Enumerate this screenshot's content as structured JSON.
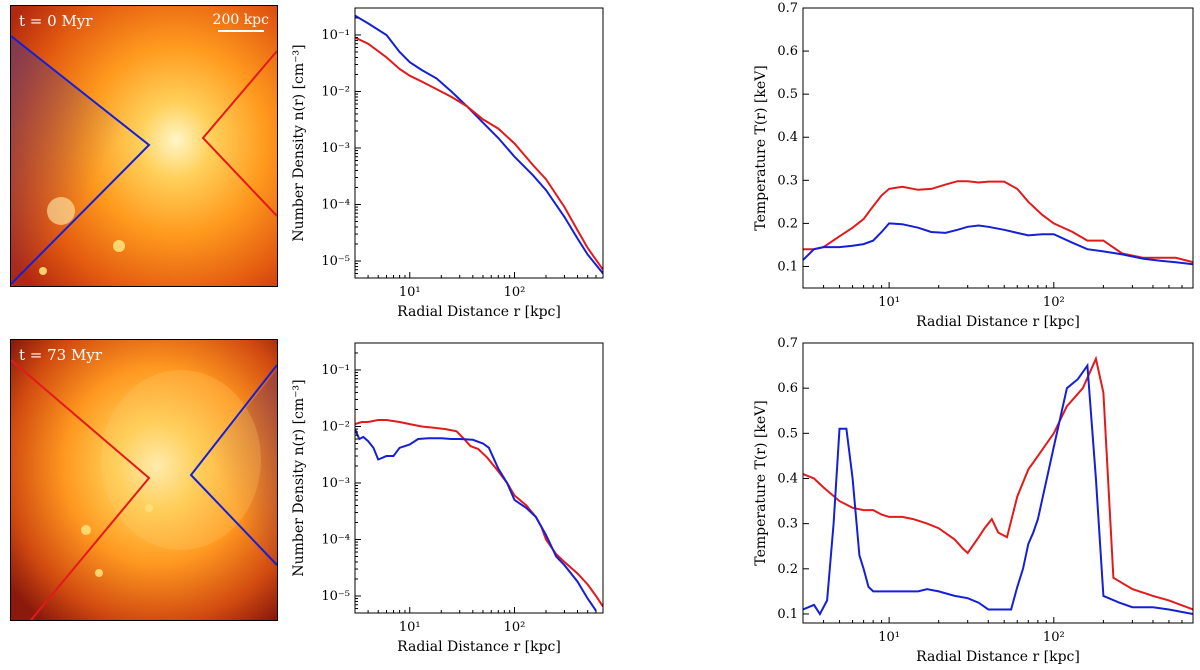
{
  "snapshots": [
    {
      "time_label": "t = 0 Myr",
      "scale_label": "200 kpc",
      "left_cone": "blue",
      "right_cone": "red"
    },
    {
      "time_label": "t = 73 Myr",
      "scale_label": "",
      "left_cone": "red",
      "right_cone": "blue"
    }
  ],
  "colors": {
    "red": "#e31a1c",
    "blue": "#1520d6"
  },
  "chart_data": [
    {
      "id": "density_t0",
      "type": "line",
      "xscale": "log",
      "yscale": "log",
      "xlabel": "Radial Distance r [kpc]",
      "ylabel": "Number Density n(r) [cm⁻³]",
      "xlim": [
        3,
        700
      ],
      "ylim": [
        5e-06,
        0.3
      ],
      "xticks": [
        {
          "v": 10,
          "label": "10¹"
        },
        {
          "v": 100,
          "label": "10²"
        }
      ],
      "yticks": [
        {
          "v": 1e-05,
          "label": "10⁻⁵"
        },
        {
          "v": 0.0001,
          "label": "10⁻⁴"
        },
        {
          "v": 0.001,
          "label": "10⁻³"
        },
        {
          "v": 0.01,
          "label": "10⁻²"
        },
        {
          "v": 0.1,
          "label": "10⁻¹"
        }
      ],
      "series": [
        {
          "name": "blue",
          "color": "#1520d6",
          "x": [
            3,
            4,
            6,
            8,
            10,
            13,
            18,
            25,
            35,
            50,
            70,
            100,
            150,
            200,
            300,
            400,
            500,
            700
          ],
          "y": [
            0.22,
            0.16,
            0.1,
            0.05,
            0.033,
            0.024,
            0.017,
            0.01,
            0.0055,
            0.0028,
            0.0015,
            0.0007,
            0.00033,
            0.00018,
            6e-05,
            2.5e-05,
            1.3e-05,
            6e-06
          ]
        },
        {
          "name": "red",
          "color": "#e31a1c",
          "x": [
            3,
            4,
            6,
            8,
            10,
            13,
            18,
            25,
            35,
            50,
            70,
            100,
            150,
            200,
            300,
            400,
            500,
            700
          ],
          "y": [
            0.09,
            0.07,
            0.04,
            0.025,
            0.019,
            0.015,
            0.011,
            0.008,
            0.0055,
            0.0032,
            0.0022,
            0.0012,
            0.0005,
            0.00028,
            9e-05,
            3.5e-05,
            1.7e-05,
            7e-06
          ]
        }
      ]
    },
    {
      "id": "temperature_t0",
      "type": "line",
      "xscale": "log",
      "yscale": "linear",
      "xlabel": "Radial Distance r [kpc]",
      "ylabel": "Temperature T(r) [keV]",
      "xlim": [
        3,
        700
      ],
      "ylim": [
        0.05,
        0.7
      ],
      "xticks": [
        {
          "v": 10,
          "label": "10¹"
        },
        {
          "v": 100,
          "label": "10²"
        }
      ],
      "yticks": [
        {
          "v": 0.1,
          "label": "0.1"
        },
        {
          "v": 0.2,
          "label": "0.2"
        },
        {
          "v": 0.3,
          "label": "0.3"
        },
        {
          "v": 0.4,
          "label": "0.4"
        },
        {
          "v": 0.5,
          "label": "0.5"
        },
        {
          "v": 0.6,
          "label": "0.6"
        },
        {
          "v": 0.7,
          "label": "0.7"
        }
      ],
      "series": [
        {
          "name": "red",
          "color": "#e31a1c",
          "x": [
            3,
            3.5,
            4,
            5,
            6,
            7,
            8,
            9,
            10,
            12,
            15,
            18,
            22,
            26,
            30,
            35,
            40,
            50,
            60,
            70,
            85,
            100,
            130,
            160,
            200,
            260,
            350,
            450,
            550,
            700
          ],
          "y": [
            0.14,
            0.14,
            0.145,
            0.17,
            0.19,
            0.21,
            0.24,
            0.265,
            0.28,
            0.285,
            0.278,
            0.28,
            0.29,
            0.298,
            0.298,
            0.295,
            0.297,
            0.297,
            0.28,
            0.25,
            0.22,
            0.2,
            0.18,
            0.16,
            0.16,
            0.13,
            0.12,
            0.12,
            0.12,
            0.11
          ]
        },
        {
          "name": "blue",
          "color": "#1520d6",
          "x": [
            3,
            3.5,
            4,
            5,
            6,
            7,
            8,
            9,
            10,
            12,
            15,
            18,
            22,
            26,
            30,
            35,
            40,
            50,
            60,
            70,
            85,
            100,
            130,
            160,
            200,
            260,
            350,
            450,
            550,
            700
          ],
          "y": [
            0.115,
            0.14,
            0.145,
            0.145,
            0.148,
            0.152,
            0.16,
            0.18,
            0.2,
            0.198,
            0.19,
            0.18,
            0.178,
            0.185,
            0.192,
            0.195,
            0.192,
            0.185,
            0.178,
            0.172,
            0.175,
            0.175,
            0.155,
            0.14,
            0.135,
            0.128,
            0.118,
            0.113,
            0.11,
            0.105
          ]
        }
      ]
    },
    {
      "id": "density_t73",
      "type": "line",
      "xscale": "log",
      "yscale": "log",
      "xlabel": "Radial Distance r [kpc]",
      "ylabel": "Number Density n(r) [cm⁻³]",
      "xlim": [
        3,
        700
      ],
      "ylim": [
        5e-06,
        0.3
      ],
      "xticks": [
        {
          "v": 10,
          "label": "10¹"
        },
        {
          "v": 100,
          "label": "10²"
        }
      ],
      "yticks": [
        {
          "v": 1e-05,
          "label": "10⁻⁵"
        },
        {
          "v": 0.0001,
          "label": "10⁻⁴"
        },
        {
          "v": 0.001,
          "label": "10⁻³"
        },
        {
          "v": 0.01,
          "label": "10⁻²"
        },
        {
          "v": 0.1,
          "label": "10⁻¹"
        }
      ],
      "series": [
        {
          "name": "red",
          "color": "#e31a1c",
          "x": [
            3,
            3.5,
            4,
            5,
            6,
            8,
            10,
            13,
            17,
            22,
            28,
            33,
            38,
            45,
            55,
            70,
            85,
            100,
            130,
            160,
            180,
            200,
            250,
            300,
            400,
            500,
            600,
            700
          ],
          "y": [
            0.011,
            0.012,
            0.012,
            0.013,
            0.013,
            0.012,
            0.011,
            0.01,
            0.0095,
            0.009,
            0.0082,
            0.006,
            0.0045,
            0.004,
            0.0028,
            0.0016,
            0.001,
            0.0006,
            0.0004,
            0.00025,
            0.00017,
            0.0001,
            5.5e-05,
            4e-05,
            2.5e-05,
            1.6e-05,
            1e-05,
            6.5e-06
          ]
        },
        {
          "name": "blue",
          "color": "#1520d6",
          "x": [
            3,
            3.3,
            3.6,
            4,
            4.5,
            5,
            5.5,
            6,
            7,
            8,
            9,
            10,
            12,
            15,
            20,
            25,
            30,
            40,
            50,
            57,
            70,
            85,
            100,
            130,
            160,
            200,
            250,
            300,
            400,
            500,
            600
          ],
          "y": [
            0.009,
            0.006,
            0.0065,
            0.0055,
            0.0042,
            0.0026,
            0.0028,
            0.003,
            0.003,
            0.0042,
            0.0045,
            0.0048,
            0.006,
            0.0062,
            0.0062,
            0.006,
            0.006,
            0.0058,
            0.005,
            0.0042,
            0.0018,
            0.001,
            0.0005,
            0.00036,
            0.00025,
            0.00012,
            5e-05,
            3.5e-05,
            1.8e-05,
            9e-06,
            5.5e-06
          ]
        }
      ]
    },
    {
      "id": "temperature_t73",
      "type": "line",
      "xscale": "log",
      "yscale": "linear",
      "xlabel": "Radial Distance r [kpc]",
      "ylabel": "Temperature T(r) [keV]",
      "xlim": [
        3,
        700
      ],
      "ylim": [
        0.08,
        0.7
      ],
      "xticks": [
        {
          "v": 10,
          "label": "10¹"
        },
        {
          "v": 100,
          "label": "10²"
        }
      ],
      "yticks": [
        {
          "v": 0.1,
          "label": "0.1"
        },
        {
          "v": 0.2,
          "label": "0.2"
        },
        {
          "v": 0.3,
          "label": "0.3"
        },
        {
          "v": 0.4,
          "label": "0.4"
        },
        {
          "v": 0.5,
          "label": "0.5"
        },
        {
          "v": 0.6,
          "label": "0.6"
        },
        {
          "v": 0.7,
          "label": "0.7"
        }
      ],
      "series": [
        {
          "name": "red",
          "color": "#e31a1c",
          "x": [
            3,
            3.5,
            4,
            5,
            6,
            7,
            8,
            9,
            10,
            12,
            14,
            17,
            20,
            25,
            28,
            30,
            35,
            38,
            42,
            46,
            52,
            60,
            70,
            80,
            100,
            120,
            150,
            180,
            200,
            230,
            300,
            400,
            500,
            700
          ],
          "y": [
            0.41,
            0.4,
            0.38,
            0.35,
            0.335,
            0.33,
            0.33,
            0.32,
            0.315,
            0.315,
            0.31,
            0.3,
            0.29,
            0.265,
            0.245,
            0.235,
            0.27,
            0.29,
            0.31,
            0.28,
            0.27,
            0.36,
            0.42,
            0.45,
            0.5,
            0.56,
            0.6,
            0.665,
            0.59,
            0.18,
            0.155,
            0.14,
            0.13,
            0.11
          ]
        },
        {
          "name": "blue",
          "color": "#1520d6",
          "x": [
            3,
            3.5,
            3.8,
            4.2,
            4.6,
            5,
            5.5,
            6,
            6.6,
            7,
            7.5,
            8,
            9,
            10,
            12,
            15,
            17,
            20,
            25,
            30,
            35,
            40,
            45,
            55,
            60,
            65,
            70,
            75,
            80,
            100,
            120,
            140,
            160,
            180,
            200,
            250,
            300,
            400,
            500,
            700
          ],
          "y": [
            0.11,
            0.12,
            0.1,
            0.13,
            0.3,
            0.51,
            0.51,
            0.4,
            0.23,
            0.2,
            0.16,
            0.15,
            0.15,
            0.15,
            0.15,
            0.15,
            0.155,
            0.15,
            0.14,
            0.135,
            0.125,
            0.11,
            0.11,
            0.11,
            0.16,
            0.2,
            0.255,
            0.28,
            0.31,
            0.47,
            0.6,
            0.62,
            0.65,
            0.4,
            0.14,
            0.125,
            0.115,
            0.115,
            0.11,
            0.1
          ]
        }
      ]
    }
  ]
}
